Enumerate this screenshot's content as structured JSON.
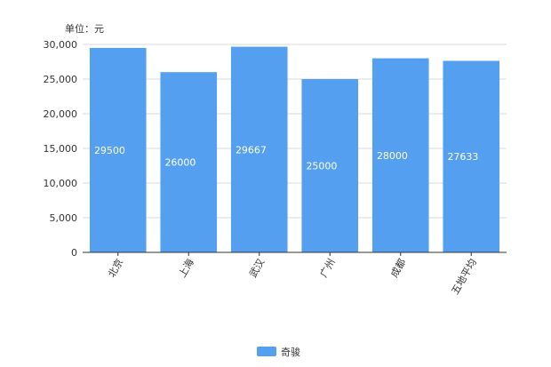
{
  "chart_data": {
    "type": "bar",
    "unit_label": "单位：元",
    "categories": [
      "北京",
      "上海",
      "武汉",
      "广州",
      "成都",
      "五地平均"
    ],
    "series": [
      {
        "name": "奇骏",
        "values": [
          29500,
          26000,
          29667,
          25000,
          28000,
          27633
        ],
        "color": "#549ff0"
      }
    ],
    "y_ticks": [
      "0",
      "5,000",
      "10,000",
      "15,000",
      "20,000",
      "25,000",
      "30,000"
    ],
    "ylim": [
      0,
      30000
    ],
    "grid": true,
    "legend_position": "bottom-center"
  }
}
